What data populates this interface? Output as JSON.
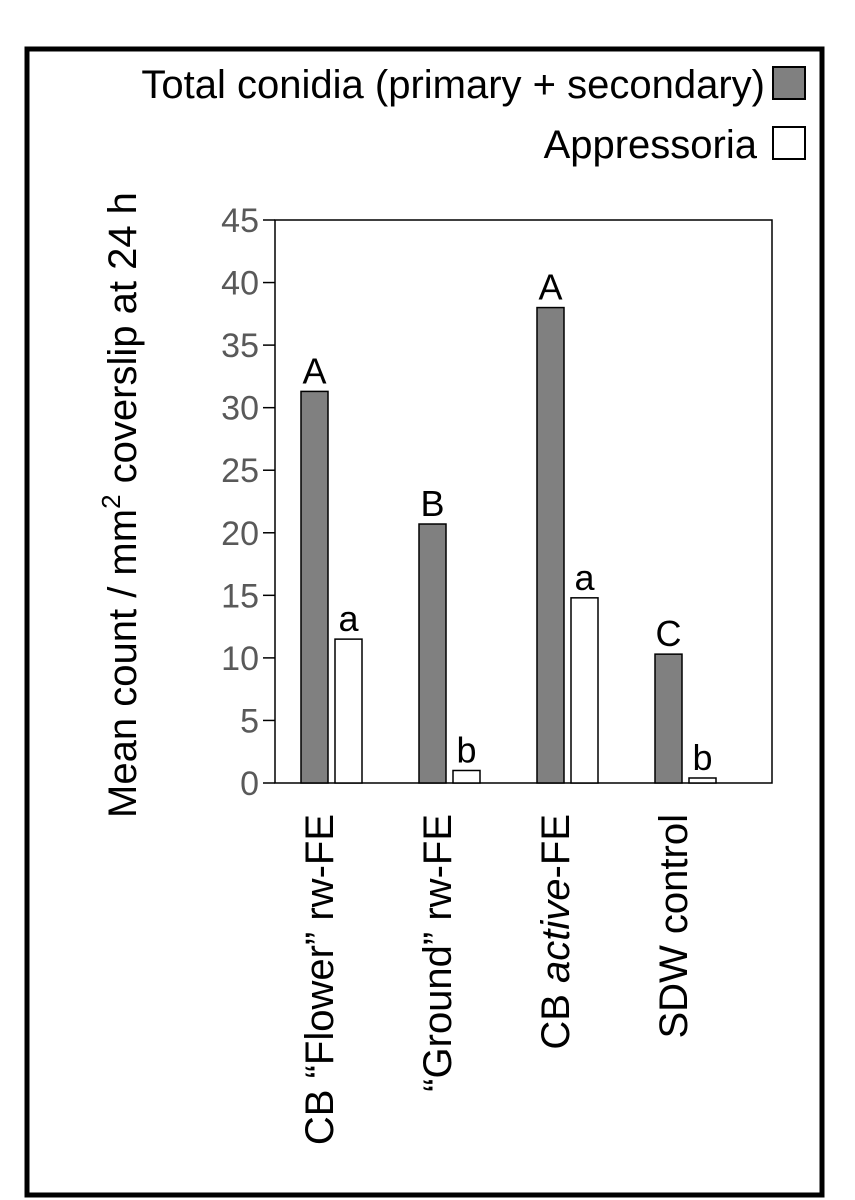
{
  "chart_data": {
    "type": "bar",
    "title": "",
    "xlabel": "",
    "ylabel_parts": [
      "Mean count / mm",
      "2",
      " coverslip at 24 h"
    ],
    "ylim": [
      0,
      45
    ],
    "yticks": [
      0,
      5,
      10,
      15,
      20,
      25,
      30,
      35,
      40,
      45
    ],
    "legend_placement": "top-right",
    "grid": false,
    "categories": [
      {
        "parts": [
          "CB “Flower” rw-FE"
        ],
        "italic_index": -1
      },
      {
        "parts": [
          "“Ground” rw-FE"
        ],
        "italic_index": -1
      },
      {
        "parts": [
          "CB ",
          "active",
          "-FE"
        ],
        "italic_index": 1
      },
      {
        "parts": [
          "SDW control"
        ],
        "italic_index": -1
      }
    ],
    "series": [
      {
        "name": "Total conidia (primary + secondary)",
        "color": "#808080",
        "values": [
          31.3,
          20.7,
          38.0,
          10.3
        ],
        "significance": [
          "A",
          "B",
          "A",
          "C"
        ]
      },
      {
        "name": "Appressoria",
        "color": "#ffffff",
        "values": [
          11.5,
          1.0,
          14.8,
          0.4
        ],
        "significance": [
          "a",
          "b",
          "a",
          "b"
        ]
      }
    ]
  }
}
